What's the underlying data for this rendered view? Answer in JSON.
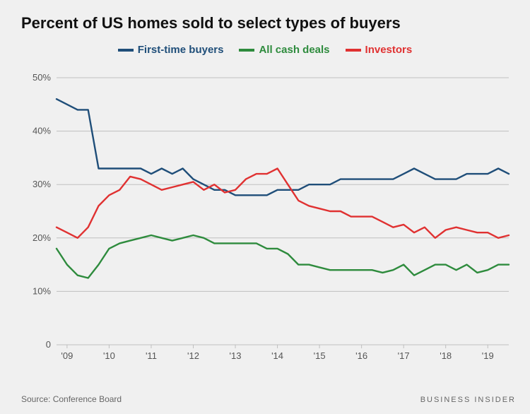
{
  "chart": {
    "type": "line",
    "title": "Percent of US homes sold to select types of buyers",
    "title_fontsize": 22,
    "title_fontweight": 700,
    "background_color": "#f0f0f0",
    "grid_color": "#bfbfbf",
    "axis_label_color": "#555555",
    "axis_label_fontsize": 13,
    "line_width": 2.4,
    "x": {
      "min": 0,
      "max": 43,
      "ticks": [
        {
          "pos": 1,
          "label": "'09"
        },
        {
          "pos": 5,
          "label": "'10"
        },
        {
          "pos": 9,
          "label": "'11"
        },
        {
          "pos": 13,
          "label": "'12"
        },
        {
          "pos": 17,
          "label": "'13"
        },
        {
          "pos": 21,
          "label": "'14"
        },
        {
          "pos": 25,
          "label": "'15"
        },
        {
          "pos": 29,
          "label": "'16"
        },
        {
          "pos": 33,
          "label": "'17"
        },
        {
          "pos": 37,
          "label": "'18"
        },
        {
          "pos": 41,
          "label": "'19"
        }
      ]
    },
    "y": {
      "min": 0,
      "max": 50,
      "ticks": [
        {
          "v": 0,
          "label": "0"
        },
        {
          "v": 10,
          "label": "10%"
        },
        {
          "v": 20,
          "label": "20%"
        },
        {
          "v": 30,
          "label": "30%"
        },
        {
          "v": 40,
          "label": "40%"
        },
        {
          "v": 50,
          "label": "50%"
        }
      ]
    },
    "series": [
      {
        "name": "First-time buyers",
        "color": "#1f4e79",
        "values": [
          46,
          45,
          44,
          44,
          33,
          33,
          33,
          33,
          33,
          32,
          33,
          32,
          33,
          31,
          30,
          29,
          29,
          28,
          28,
          28,
          28,
          29,
          29,
          29,
          30,
          30,
          30,
          31,
          31,
          31,
          31,
          31,
          31,
          32,
          33,
          32,
          31,
          31,
          31,
          32,
          32,
          32,
          33,
          32
        ]
      },
      {
        "name": "All cash deals",
        "color": "#2e8b3d",
        "values": [
          18,
          15,
          13,
          12.5,
          15,
          18,
          19,
          19.5,
          20,
          20.5,
          20,
          19.5,
          20,
          20.5,
          20,
          19,
          19,
          19,
          19,
          19,
          18,
          18,
          17,
          15,
          15,
          14.5,
          14,
          14,
          14,
          14,
          14,
          13.5,
          14,
          15,
          13,
          14,
          15,
          15,
          14,
          15,
          13.5,
          14,
          15,
          15
        ]
      },
      {
        "name": "Investors",
        "color": "#e03131",
        "values": [
          22,
          21,
          20,
          22,
          26,
          28,
          29,
          31.5,
          31,
          30,
          29,
          29.5,
          30,
          30.5,
          29,
          30,
          28.5,
          29,
          31,
          32,
          32,
          33,
          30,
          27,
          26,
          25.5,
          25,
          25,
          24,
          24,
          24,
          23,
          22,
          22.5,
          21,
          22,
          20,
          21.5,
          22,
          21.5,
          21,
          21,
          20,
          20.5
        ]
      }
    ],
    "legend": {
      "items": [
        {
          "label": "First-time buyers",
          "color": "#1f4e79"
        },
        {
          "label": "All cash deals",
          "color": "#2e8b3d"
        },
        {
          "label": "Investors",
          "color": "#e03131"
        }
      ]
    },
    "source_label": "Source: Conference Board",
    "brand_label": "BUSINESS INSIDER"
  }
}
